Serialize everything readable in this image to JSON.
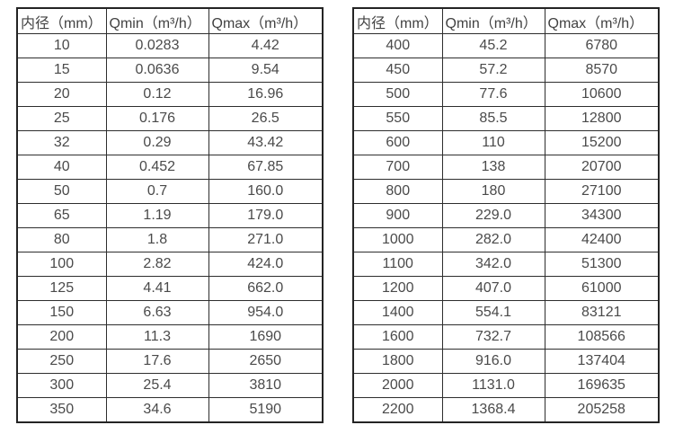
{
  "colors": {
    "background": "#ffffff",
    "table_border": "#242424",
    "inner_border": "#2e2e2e",
    "text": "#4a4a4a"
  },
  "tables": [
    {
      "columns": [
        {
          "key": "diameter",
          "label": "内径（mm）"
        },
        {
          "key": "qmin",
          "label": "Qmin（m³/h）"
        },
        {
          "key": "qmax",
          "label": "Qmax（m³/h）"
        }
      ],
      "rows": [
        [
          "10",
          "0.0283",
          "4.42"
        ],
        [
          "15",
          "0.0636",
          "9.54"
        ],
        [
          "20",
          "0.12",
          "16.96"
        ],
        [
          "25",
          "0.176",
          "26.5"
        ],
        [
          "32",
          "0.29",
          "43.42"
        ],
        [
          "40",
          "0.452",
          "67.85"
        ],
        [
          "50",
          "0.7",
          "160.0"
        ],
        [
          "65",
          "1.19",
          "179.0"
        ],
        [
          "80",
          "1.8",
          "271.0"
        ],
        [
          "100",
          "2.82",
          "424.0"
        ],
        [
          "125",
          "4.41",
          "662.0"
        ],
        [
          "150",
          "6.63",
          "954.0"
        ],
        [
          "200",
          "11.3",
          "1690"
        ],
        [
          "250",
          "17.6",
          "2650"
        ],
        [
          "300",
          "25.4",
          "3810"
        ],
        [
          "350",
          "34.6",
          "5190"
        ]
      ]
    },
    {
      "columns": [
        {
          "key": "diameter",
          "label": "内径（mm）"
        },
        {
          "key": "qmin",
          "label": "Qmin（m³/h）"
        },
        {
          "key": "qmax",
          "label": "Qmax（m³/h）"
        }
      ],
      "rows": [
        [
          "400",
          "45.2",
          "6780"
        ],
        [
          "450",
          "57.2",
          "8570"
        ],
        [
          "500",
          "77.6",
          "10600"
        ],
        [
          "550",
          "85.5",
          "12800"
        ],
        [
          "600",
          "110",
          "15200"
        ],
        [
          "700",
          "138",
          "20700"
        ],
        [
          "800",
          "180",
          "27100"
        ],
        [
          "900",
          "229.0",
          "34300"
        ],
        [
          "1000",
          "282.0",
          "42400"
        ],
        [
          "1100",
          "342.0",
          "51300"
        ],
        [
          "1200",
          "407.0",
          "61000"
        ],
        [
          "1400",
          "554.1",
          "83121"
        ],
        [
          "1600",
          "732.7",
          "108566"
        ],
        [
          "1800",
          "916.0",
          "137404"
        ],
        [
          "2000",
          "1131.0",
          "169635"
        ],
        [
          "2200",
          "1368.4",
          "205258"
        ]
      ]
    }
  ]
}
